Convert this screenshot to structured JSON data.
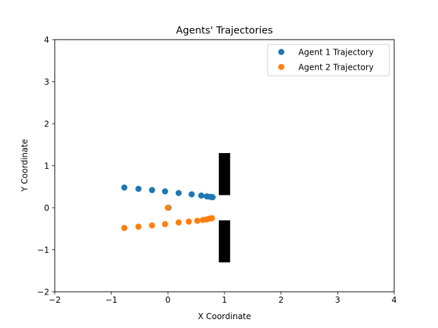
{
  "chart_data": {
    "type": "scatter",
    "title": "Agents' Trajectories",
    "xlabel": "X Coordinate",
    "ylabel": "Y Coordinate",
    "xlim": [
      -2,
      4
    ],
    "ylim": [
      -2,
      4
    ],
    "xticks": [
      -2,
      -1,
      0,
      1,
      2,
      3,
      4
    ],
    "yticks": [
      -2,
      -1,
      0,
      1,
      2,
      3,
      4
    ],
    "grid": false,
    "legend_position": "top-right",
    "series": [
      {
        "name": "Agent 1 Trajectory",
        "color": "#1f77b4",
        "points": [
          [
            -0.77,
            0.48
          ],
          [
            -0.52,
            0.45
          ],
          [
            -0.28,
            0.42
          ],
          [
            -0.05,
            0.39
          ],
          [
            0.19,
            0.35
          ],
          [
            0.42,
            0.32
          ],
          [
            0.59,
            0.29
          ],
          [
            0.69,
            0.27
          ],
          [
            0.75,
            0.26
          ],
          [
            0.78,
            0.25
          ],
          [
            0.79,
            0.25
          ],
          [
            0.01,
            0.0
          ]
        ]
      },
      {
        "name": "Agent 2 Trajectory",
        "color": "#ff7f0e",
        "points": [
          [
            -0.77,
            -0.48
          ],
          [
            -0.52,
            -0.45
          ],
          [
            -0.28,
            -0.42
          ],
          [
            -0.05,
            -0.39
          ],
          [
            0.19,
            -0.35
          ],
          [
            0.37,
            -0.33
          ],
          [
            0.52,
            -0.31
          ],
          [
            0.62,
            -0.29
          ],
          [
            0.68,
            -0.28
          ],
          [
            0.73,
            -0.26
          ],
          [
            0.77,
            -0.25
          ],
          [
            0.78,
            -0.25
          ],
          [
            0.0,
            0.0
          ]
        ]
      }
    ],
    "obstacles": [
      {
        "x": [
          0.9,
          1.1
        ],
        "y": [
          0.3,
          1.3
        ],
        "color": "#000000"
      },
      {
        "x": [
          0.9,
          1.1
        ],
        "y": [
          -1.3,
          -0.3
        ],
        "color": "#000000"
      }
    ]
  }
}
